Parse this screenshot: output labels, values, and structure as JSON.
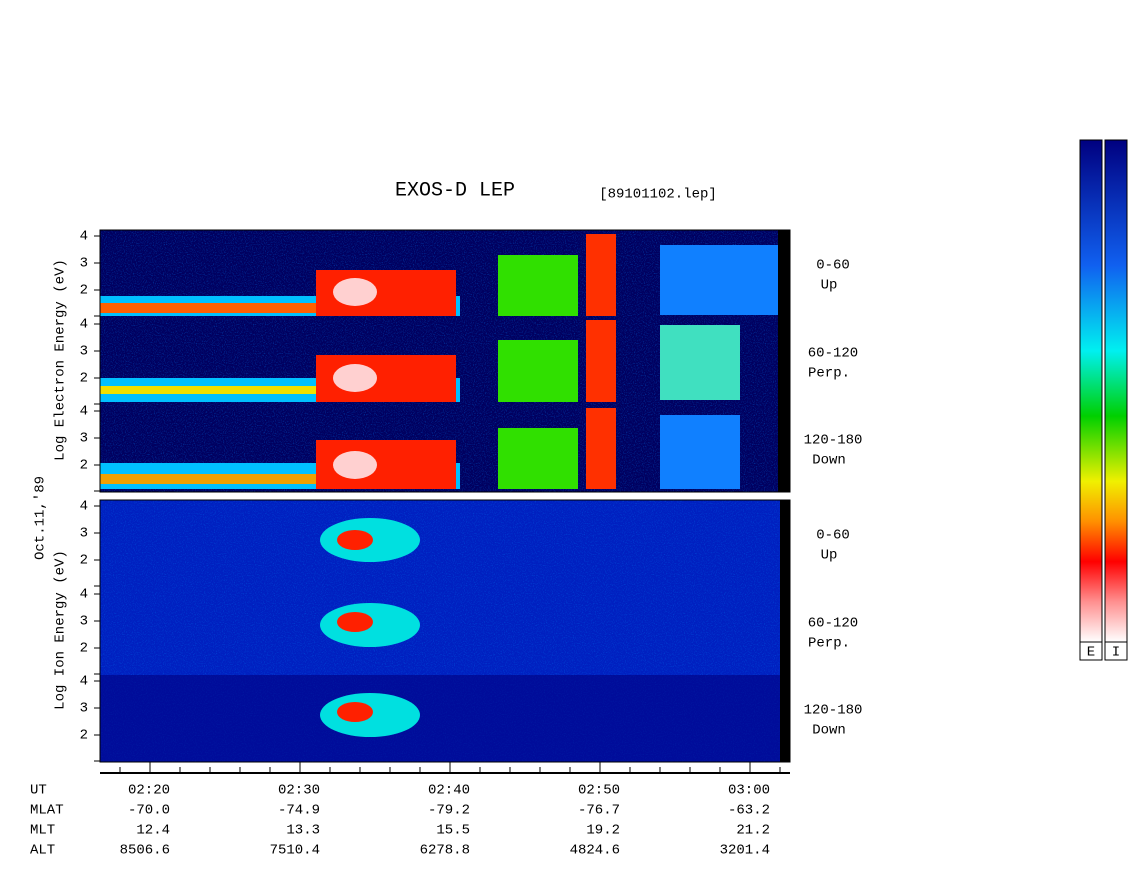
{
  "title": "EXOS-D LEP",
  "file": "[89101102.lep]",
  "date": "Oct.11,'89",
  "electron_axis_label": "Log Electron Energy (eV)",
  "ion_axis_label": "Log Ion Energy (eV)",
  "yticks": [
    "2",
    "3",
    "4"
  ],
  "panels": [
    {
      "angle": "0-60",
      "direction": "Up"
    },
    {
      "angle": "60-120",
      "direction": "Perp."
    },
    {
      "angle": "120-180",
      "direction": "Down"
    },
    {
      "angle": "0-60",
      "direction": "Up"
    },
    {
      "angle": "60-120",
      "direction": "Perp."
    },
    {
      "angle": "120-180",
      "direction": "Down"
    }
  ],
  "time_axis": {
    "rows": [
      {
        "label": "UT",
        "values": [
          "02:20",
          "02:30",
          "02:40",
          "02:50",
          "03:00"
        ]
      },
      {
        "label": "MLAT",
        "values": [
          "-70.0",
          "-74.9",
          "-79.2",
          "-76.7",
          "-63.2"
        ]
      },
      {
        "label": "MLT",
        "values": [
          "12.4",
          "13.3",
          "15.5",
          "19.2",
          "21.2"
        ]
      },
      {
        "label": "ALT",
        "values": [
          "8506.6",
          "7510.4",
          "6278.8",
          "4824.6",
          "3201.4"
        ]
      }
    ]
  },
  "colorbars": [
    "E",
    "I"
  ]
}
